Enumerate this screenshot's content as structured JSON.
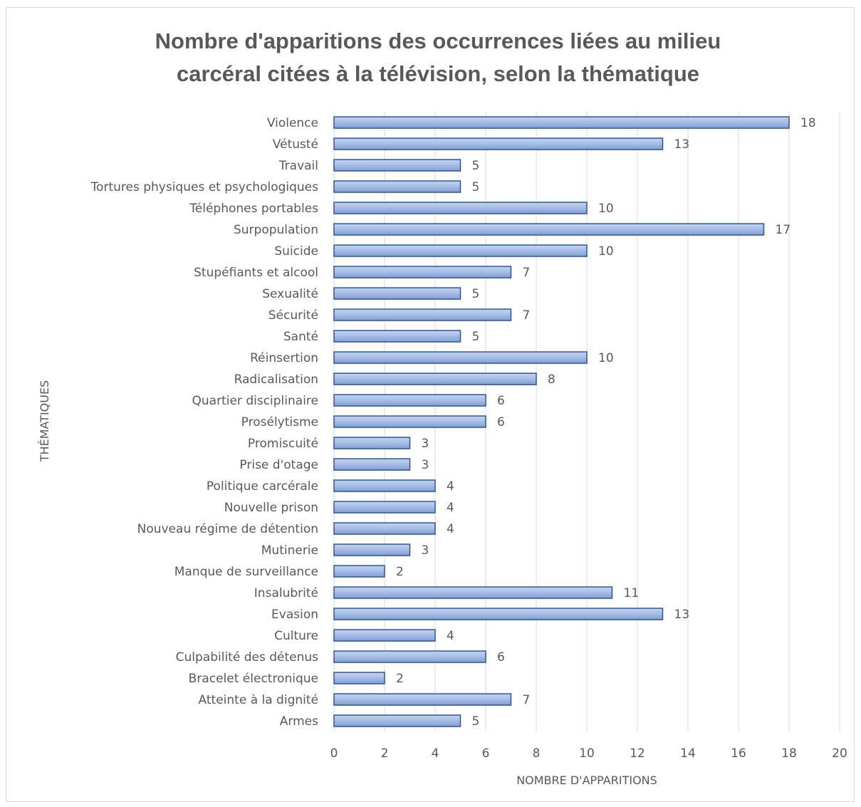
{
  "chart_data": {
    "type": "bar",
    "orientation": "horizontal",
    "title": "Nombre d'apparitions des occurrences liées au milieu carcéral citées à la télévision, selon la thématique",
    "title_lines": [
      "Nombre d'apparitions des occurrences liées au milieu",
      "carcéral citées à la télévision, selon la thématique"
    ],
    "xlabel": "NOMBRE D'APPARITIONS",
    "ylabel": "THÉMATIQUES",
    "xlim": [
      0,
      20
    ],
    "x_ticks": [
      "0",
      "2",
      "4",
      "6",
      "8",
      "10",
      "12",
      "14",
      "16",
      "18",
      "20"
    ],
    "grid": true,
    "bar_color": "#8faadc",
    "bar_color_light": "#c5d3ee",
    "bar_border_color": "#2f5597",
    "categories": [
      "Violence",
      "Vétusté",
      "Travail",
      "Tortures physiques et psychologiques",
      "Téléphones portables",
      "Surpopulation",
      "Suicide",
      "Stupéfiants et alcool",
      "Sexualité",
      "Sécurité",
      "Santé",
      "Réinsertion",
      "Radicalisation",
      "Quartier disciplinaire",
      "Prosélytisme",
      "Promiscuité",
      "Prise d'otage",
      "Politique carcérale",
      "Nouvelle prison",
      "Nouveau régime de détention",
      "Mutinerie",
      "Manque de surveillance",
      "Insalubrité",
      "Evasion",
      "Culture",
      "Culpabilité des détenus",
      "Bracelet électronique",
      "Atteinte à la dignité",
      "Armes"
    ],
    "values": [
      18,
      13,
      5,
      5,
      10,
      17,
      10,
      7,
      5,
      7,
      5,
      10,
      8,
      6,
      6,
      3,
      3,
      4,
      4,
      4,
      3,
      2,
      11,
      13,
      4,
      6,
      2,
      7,
      5
    ]
  }
}
